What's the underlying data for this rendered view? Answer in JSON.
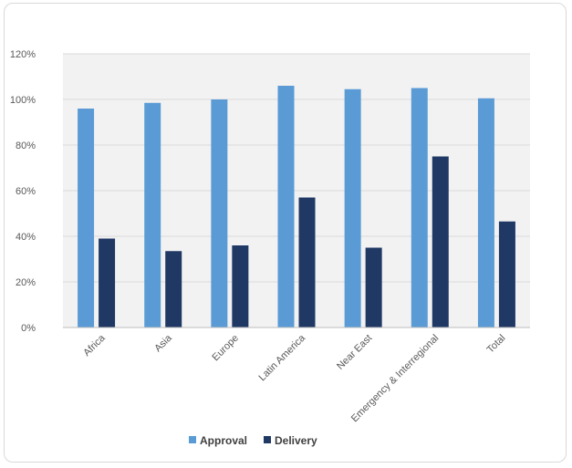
{
  "chart_data": {
    "type": "bar",
    "title": "",
    "xlabel": "",
    "ylabel": "",
    "ylim": [
      0,
      120
    ],
    "yticks": [
      "0%",
      "20%",
      "40%",
      "60%",
      "80%",
      "100%",
      "120%"
    ],
    "grid": true,
    "legend_position": "bottom",
    "categories": [
      "Africa",
      "Asia",
      "Europe",
      "Latin America",
      "Near East",
      "Emergency & Interregional",
      "Total"
    ],
    "series": [
      {
        "name": "Approval",
        "color": "#5b9bd5",
        "values": [
          96,
          98.5,
          100,
          106,
          104.5,
          105,
          100.5
        ]
      },
      {
        "name": "Delivery",
        "color": "#1f3864",
        "values": [
          39,
          33.5,
          36,
          57,
          35,
          75,
          46.5
        ]
      }
    ]
  }
}
